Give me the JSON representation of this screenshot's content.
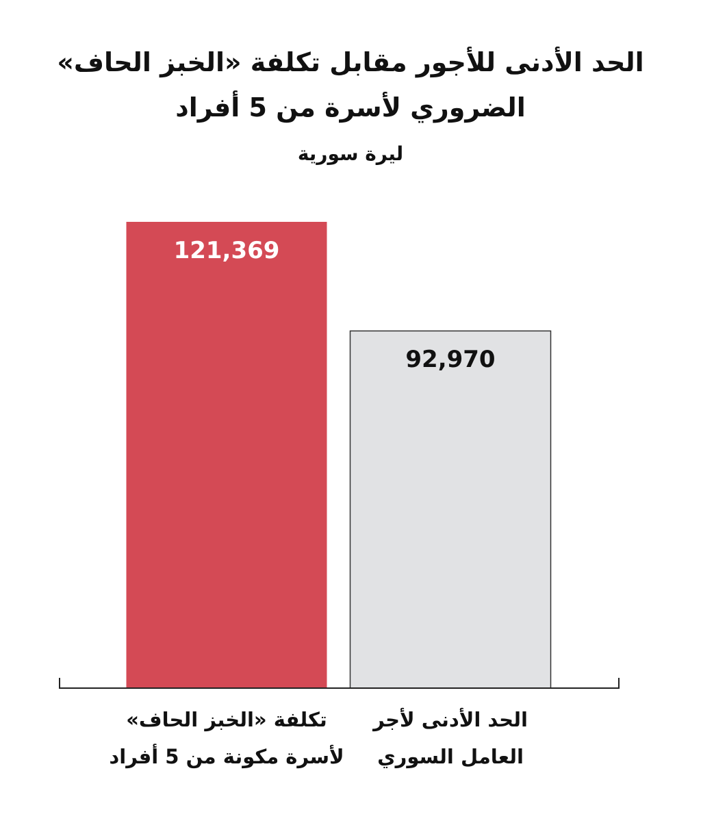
{
  "chart_data": {
    "type": "bar",
    "title": "الحد الأدنى للأجور مقابل تكلفة «الخبز الحاف»\nالضروري لأسرة من 5 أفراد",
    "subtitle": "ليرة سورية",
    "categories": [
      "الحد الأدنى لأجر\nالعامل السوري",
      "تكلفة «الخبز الحاف»\nلأسرة مكونة من 5 أفراد"
    ],
    "values": [
      92970,
      121369
    ],
    "value_labels": [
      "92,970",
      "121,369"
    ],
    "colors": [
      "#e1e2e4",
      "#d44a55"
    ],
    "direction": "rtl"
  }
}
